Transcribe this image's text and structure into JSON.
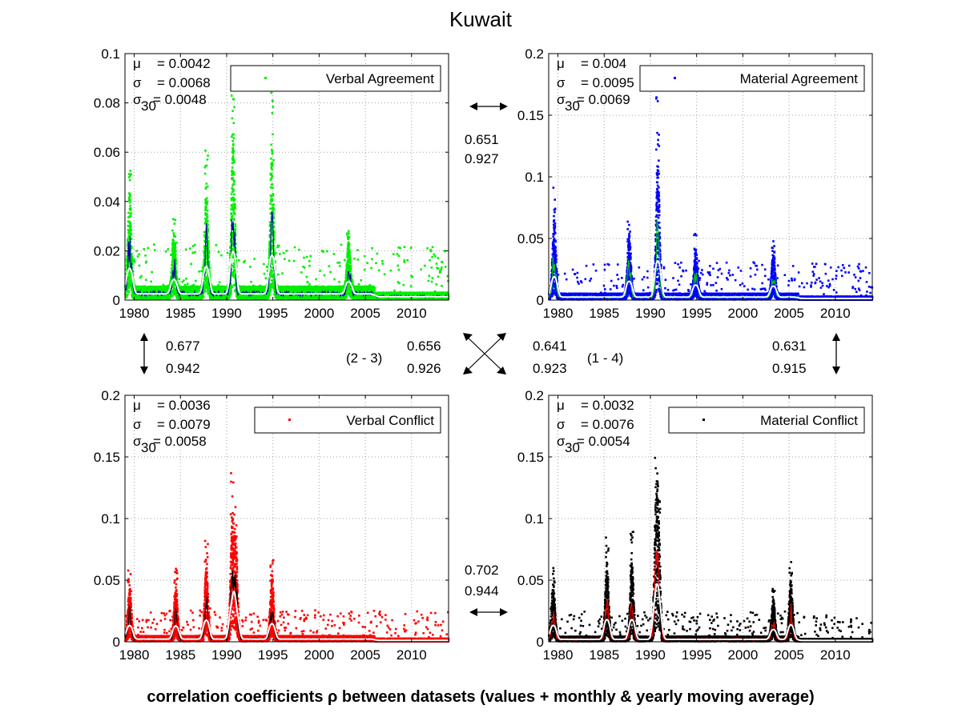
{
  "title": "Kuwait",
  "caption": "correlation coefficients ρ between datasets (values + monthly & yearly moving average)",
  "stat_labels": {
    "mu": "μ",
    "sigma": "σ",
    "sigma30": "σ",
    "sigma30_sub": "30"
  },
  "panels": [
    {
      "id": "verbal-agreement",
      "legend": "Verbal Agreement",
      "color": "#00ee00",
      "line_color": "#0000aa",
      "avg_color": "#ffffff",
      "mu": "= 0.0042",
      "sigma": "= 0.0068",
      "sigma30": "= 0.0048",
      "ylim": [
        0,
        0.1
      ],
      "yticks": [
        "0",
        "0.02",
        "0.04",
        "0.06",
        "0.08",
        "0.1"
      ],
      "xticks": [
        "1980",
        "1985",
        "1990",
        "1995",
        "2000",
        "2005",
        "2010"
      ]
    },
    {
      "id": "material-agreement",
      "legend": "Material Agreement",
      "color": "#0000ff",
      "line_color": "#00cc00",
      "avg_color": "#ffffff",
      "mu": "= 0.004",
      "sigma": "= 0.0095",
      "sigma30": "= 0.0069",
      "ylim": [
        0,
        0.2
      ],
      "yticks": [
        "0",
        "0.05",
        "0.1",
        "0.15",
        "0.2"
      ],
      "xticks": [
        "1980",
        "1985",
        "1990",
        "1995",
        "2000",
        "2005",
        "2010"
      ]
    },
    {
      "id": "verbal-conflict",
      "legend": "Verbal Conflict",
      "color": "#ff0000",
      "line_color": "#000000",
      "avg_color": "#ffffff",
      "mu": "= 0.0036",
      "sigma": "= 0.0079",
      "sigma30": "= 0.0058",
      "ylim": [
        0,
        0.2
      ],
      "yticks": [
        "0",
        "0.05",
        "0.1",
        "0.15",
        "0.2"
      ],
      "xticks": [
        "1980",
        "1985",
        "1990",
        "1995",
        "2000",
        "2005",
        "2010"
      ]
    },
    {
      "id": "material-conflict",
      "legend": "Material Conflict",
      "color": "#000000",
      "line_color": "#ff0000",
      "avg_color": "#ffffff",
      "mu": "= 0.0032",
      "sigma": "= 0.0076",
      "sigma30": "= 0.0054",
      "ylim": [
        0,
        0.2
      ],
      "yticks": [
        "0",
        "0.05",
        "0.1",
        "0.15",
        "0.2"
      ],
      "xticks": [
        "1980",
        "1985",
        "1990",
        "1995",
        "2000",
        "2005",
        "2010"
      ]
    }
  ],
  "correlations": {
    "top": [
      "0.651",
      "0.927"
    ],
    "left": [
      "0.677",
      "0.942"
    ],
    "cross_23_label": "(2 - 3)",
    "cross_23": [
      "0.656",
      "0.926"
    ],
    "cross_14": [
      "0.641",
      "0.923"
    ],
    "cross_14_label": "(1 - 4)",
    "right": [
      "0.631",
      "0.915"
    ],
    "bottom": [
      "0.702",
      "0.944"
    ]
  },
  "chart_data": [
    {
      "type": "scatter",
      "title": "Verbal Agreement",
      "x_range": [
        1979,
        2014
      ],
      "ylim": [
        0,
        0.1
      ],
      "grid": true,
      "legend": "top-right",
      "series": [
        {
          "name": "Verbal Agreement",
          "mean": 0.0042,
          "std": 0.0068,
          "std30": 0.0048
        }
      ],
      "peaks": [
        [
          1979.5,
          0.058
        ],
        [
          1984.3,
          0.033
        ],
        [
          1987.8,
          0.062
        ],
        [
          1990.7,
          0.096
        ],
        [
          1994.9,
          0.088
        ],
        [
          2003.2,
          0.028
        ]
      ]
    },
    {
      "type": "scatter",
      "title": "Material Agreement",
      "x_range": [
        1979,
        2014
      ],
      "ylim": [
        0,
        0.2
      ],
      "grid": true,
      "legend": "top-right",
      "series": [
        {
          "name": "Material Agreement",
          "mean": 0.004,
          "std": 0.0095,
          "std30": 0.0069
        }
      ],
      "peaks": [
        [
          1979.6,
          0.092
        ],
        [
          1987.7,
          0.072
        ],
        [
          1990.8,
          0.165
        ],
        [
          1994.9,
          0.055
        ],
        [
          2003.3,
          0.05
        ]
      ]
    },
    {
      "type": "scatter",
      "title": "Verbal Conflict",
      "x_range": [
        1979,
        2014
      ],
      "ylim": [
        0,
        0.2
      ],
      "grid": true,
      "legend": "top-right",
      "series": [
        {
          "name": "Verbal Conflict",
          "mean": 0.0036,
          "std": 0.0079,
          "std30": 0.0058
        }
      ],
      "peaks": [
        [
          1979.5,
          0.062
        ],
        [
          1984.5,
          0.06
        ],
        [
          1987.8,
          0.086
        ],
        [
          1990.6,
          0.139
        ],
        [
          1991.0,
          0.11
        ],
        [
          1994.9,
          0.07
        ]
      ]
    },
    {
      "type": "scatter",
      "title": "Material Conflict",
      "x_range": [
        1979,
        2014
      ],
      "ylim": [
        0,
        0.2
      ],
      "grid": true,
      "legend": "top-right",
      "series": [
        {
          "name": "Material Conflict",
          "mean": 0.0032,
          "std": 0.0076,
          "std30": 0.0054
        }
      ],
      "peaks": [
        [
          1979.5,
          0.064
        ],
        [
          1985.3,
          0.09
        ],
        [
          1988.0,
          0.09
        ],
        [
          1990.6,
          0.152
        ],
        [
          1990.9,
          0.12
        ],
        [
          2003.3,
          0.045
        ],
        [
          2005.2,
          0.066
        ]
      ]
    }
  ]
}
